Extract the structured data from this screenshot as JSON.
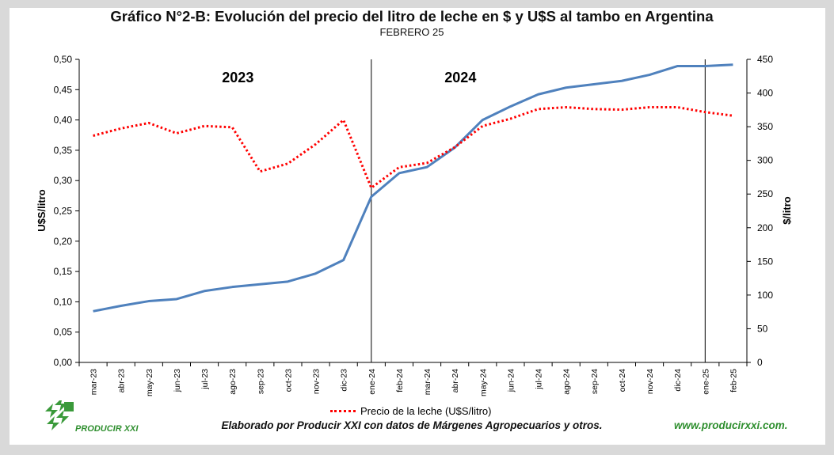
{
  "title": "Gráfico N°2-B: Evolución del precio del litro de leche en $ y U$S al tambo en Argentina",
  "subtitle": "FEBRERO 25",
  "credit": "Elaborado por Producir XXI con datos de Márgenes Agropecuarios y otros.",
  "website": "www.producirxxi.com.",
  "logo_text": "PRODUCIR XXI",
  "colors": {
    "pesos_series": "#4f81bd",
    "usd_series": "#ff0000",
    "background": "#d9d9d9"
  },
  "chart_data": {
    "type": "line",
    "title": "Gráfico N°2-B: Evolución del precio del litro de leche en $ y U$S al tambo en Argentina",
    "subtitle": "FEBRERO 25",
    "categories": [
      "mar-23",
      "abr-23",
      "may-23",
      "jun-23",
      "jul-23",
      "ago-23",
      "sep-23",
      "oct-23",
      "nov-23",
      "dic-23",
      "ene-24",
      "feb-24",
      "mar-24",
      "abr-24",
      "may-24",
      "jun-24",
      "jul-24",
      "ago-24",
      "sep-24",
      "oct-24",
      "nov-24",
      "dic-24",
      "ene-25",
      "feb-25"
    ],
    "y_left": {
      "label": "U$S/litro",
      "range": [
        0,
        0.5
      ],
      "ticks": [
        "0,00",
        "0,05",
        "0,10",
        "0,15",
        "0,20",
        "0,25",
        "0,30",
        "0,35",
        "0,40",
        "0,45",
        "0,50"
      ]
    },
    "y_right": {
      "label": "$/litro",
      "range": [
        0,
        450
      ],
      "ticks": [
        "0",
        "50",
        "100",
        "150",
        "200",
        "250",
        "300",
        "350",
        "400",
        "450"
      ]
    },
    "series": [
      {
        "name": "",
        "axis": "right",
        "style": "solid",
        "values": [
          76,
          84,
          91,
          94,
          106,
          112,
          116,
          120,
          132,
          152,
          246,
          281,
          290,
          319,
          360,
          380,
          398,
          408,
          413,
          418,
          427,
          440,
          440,
          442
        ]
      },
      {
        "name": "Precio de la leche (U$S/litro)",
        "axis": "left",
        "style": "dotted",
        "values": [
          0.374,
          0.386,
          0.395,
          0.378,
          0.39,
          0.388,
          0.315,
          0.328,
          0.36,
          0.4,
          0.288,
          0.322,
          0.329,
          0.355,
          0.39,
          0.402,
          0.418,
          0.421,
          0.418,
          0.417,
          0.421,
          0.421,
          0.413,
          0.407
        ]
      }
    ],
    "annotations": [
      {
        "text": "2023",
        "at": "sep-23"
      },
      {
        "text": "2024",
        "at": "may-24"
      }
    ],
    "vertical_lines": [
      "ene-24",
      "ene-25"
    ],
    "grid": false,
    "legend": "bottom-center"
  }
}
